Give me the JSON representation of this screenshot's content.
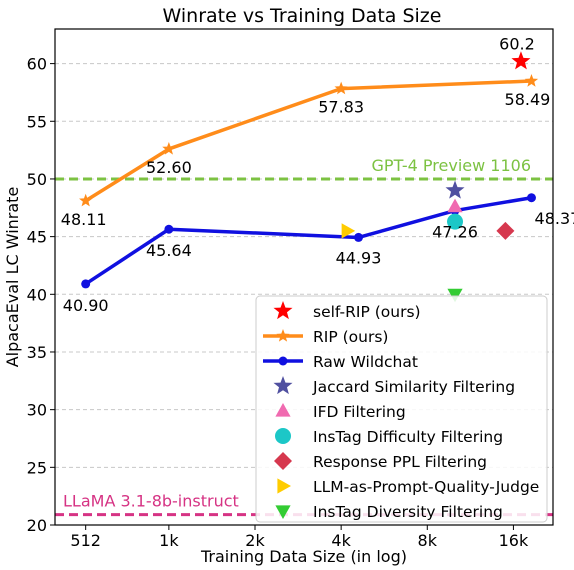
{
  "chart_data": {
    "type": "line",
    "title": "Winrate vs Training Data Size",
    "xlabel": "Training Data Size (in log)",
    "ylabel": "AlpacaEval LC Winrate",
    "x_scale": "log2",
    "xlim": [
      400,
      22000
    ],
    "ylim": [
      20,
      63
    ],
    "x_ticks": [
      {
        "value": 512,
        "label": "512"
      },
      {
        "value": 1000,
        "label": "1k"
      },
      {
        "value": 2000,
        "label": "2k"
      },
      {
        "value": 4000,
        "label": "4k"
      },
      {
        "value": 8000,
        "label": "8k"
      },
      {
        "value": 16000,
        "label": "16k"
      }
    ],
    "y_ticks": [
      20,
      25,
      30,
      35,
      40,
      45,
      50,
      55,
      60
    ],
    "grid": "y-dashed",
    "legend_position": "bottom-right",
    "series": [
      {
        "name": "RIP (ours)",
        "color": "#ff8c1a",
        "marker": "star",
        "points": [
          {
            "x": 512,
            "y": 48.11,
            "label": "48.11"
          },
          {
            "x": 1000,
            "y": 52.6,
            "label": "52.60"
          },
          {
            "x": 4000,
            "y": 57.83,
            "label": "57.83"
          },
          {
            "x": 18500,
            "y": 58.49,
            "label": "58.49"
          }
        ]
      },
      {
        "name": "Raw Wildchat",
        "color": "#1010e0",
        "marker": "circle",
        "points": [
          {
            "x": 512,
            "y": 40.9,
            "label": "40.90"
          },
          {
            "x": 1000,
            "y": 45.64,
            "label": "45.64"
          },
          {
            "x": 4600,
            "y": 44.93,
            "label": "44.93"
          },
          {
            "x": 10000,
            "y": 47.26,
            "label": "47.26"
          },
          {
            "x": 18500,
            "y": 48.37,
            "label": "48.37"
          }
        ]
      }
    ],
    "points": [
      {
        "name": "self-RIP (ours)",
        "x": 17000,
        "y": 60.2,
        "label": "60.2",
        "color": "#ff0000",
        "marker": "star"
      },
      {
        "name": "Jaccard Similarity Filtering",
        "x": 10000,
        "y": 49.0,
        "color": "#5050a0",
        "marker": "star"
      },
      {
        "name": "IFD Filtering",
        "x": 10000,
        "y": 47.6,
        "color": "#f06ab0",
        "marker": "triangle-up"
      },
      {
        "name": "InsTag Difficulty Filtering",
        "x": 10000,
        "y": 46.3,
        "color": "#1cc7c7",
        "marker": "circle"
      },
      {
        "name": "Response PPL Filtering",
        "x": 15000,
        "y": 45.5,
        "color": "#d6384e",
        "marker": "diamond"
      },
      {
        "name": "LLM-as-Prompt-Quality-Judge",
        "x": 4200,
        "y": 45.5,
        "color": "#ffcc00",
        "marker": "triangle-right"
      },
      {
        "name": "InsTag Diversity Filtering",
        "x": 10000,
        "y": 40.0,
        "color": "#33cc33",
        "marker": "triangle-down"
      }
    ],
    "reference_lines": [
      {
        "label": "GPT-4 Preview 1106",
        "y": 50.0,
        "color": "#7cc242"
      },
      {
        "label": "LLaMA 3.1-8b-instruct",
        "y": 20.9,
        "color": "#d63384"
      }
    ],
    "legend_order": [
      "self-RIP (ours)",
      "RIP (ours)",
      "Raw Wildchat",
      "Jaccard Similarity Filtering",
      "IFD Filtering",
      "InsTag Difficulty Filtering",
      "Response PPL Filtering",
      "LLM-as-Prompt-Quality-Judge",
      "InsTag Diversity Filtering"
    ]
  }
}
